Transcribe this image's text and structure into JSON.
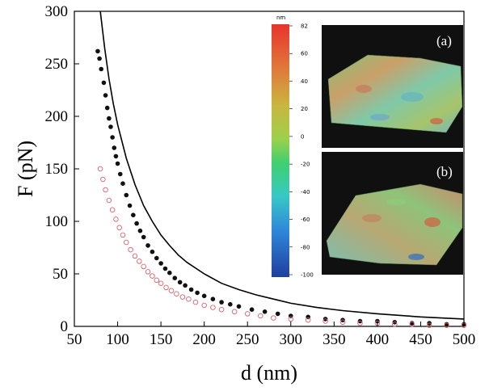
{
  "chart_data": {
    "type": "scatter",
    "xlabel": "d (nm)",
    "ylabel": "F (pN)",
    "xlim": [
      50,
      500
    ],
    "ylim": [
      0,
      300
    ],
    "xticks": [
      "50",
      "100",
      "150",
      "200",
      "250",
      "300",
      "350",
      "400",
      "450",
      "500"
    ],
    "yticks": [
      "0",
      "50",
      "100",
      "150",
      "200",
      "250",
      "300"
    ],
    "grid": false,
    "series": [
      {
        "marker": "filled-circle",
        "color": "#111111",
        "x": [
          77,
          79,
          81,
          84,
          86,
          88,
          90,
          92,
          94,
          96,
          98,
          100,
          103,
          106,
          110,
          114,
          118,
          122,
          126,
          130,
          135,
          140,
          145,
          150,
          155,
          160,
          166,
          172,
          178,
          185,
          192,
          200,
          210,
          220,
          230,
          240,
          255,
          270,
          285,
          300,
          320,
          340,
          360,
          380,
          400,
          420,
          440,
          460,
          480,
          500
        ],
        "y": [
          262,
          255,
          245,
          232,
          220,
          208,
          198,
          190,
          180,
          170,
          162,
          155,
          145,
          136,
          125,
          115,
          106,
          98,
          91,
          85,
          77,
          71,
          65,
          60,
          55,
          51,
          46,
          42,
          39,
          35,
          32,
          29,
          26,
          23,
          21,
          19,
          16,
          14,
          12,
          10,
          9,
          7,
          6,
          5,
          5,
          4,
          3,
          3,
          2,
          2
        ]
      },
      {
        "marker": "open-circle",
        "color": "#d9636b",
        "x": [
          80,
          83,
          86,
          90,
          94,
          98,
          102,
          106,
          110,
          115,
          120,
          125,
          130,
          135,
          140,
          145,
          150,
          156,
          162,
          168,
          175,
          182,
          190,
          200,
          210,
          220,
          235,
          250,
          265,
          280,
          300,
          320,
          340,
          360,
          380,
          400,
          420,
          440,
          460,
          480,
          500
        ],
        "y": [
          150,
          140,
          130,
          120,
          111,
          102,
          94,
          87,
          80,
          73,
          67,
          62,
          57,
          52,
          48,
          44,
          41,
          37,
          34,
          31,
          28,
          26,
          23,
          20,
          18,
          16,
          14,
          12,
          10,
          8,
          7,
          6,
          5,
          4,
          3,
          3,
          2,
          2,
          1,
          1,
          1
        ]
      },
      {
        "marker": "line",
        "color": "#000000",
        "x": [
          80,
          85,
          90,
          95,
          100,
          110,
          120,
          130,
          140,
          150,
          160,
          170,
          180,
          200,
          220,
          240,
          260,
          280,
          300,
          330,
          360,
          400,
          450,
          500
        ],
        "y": [
          300,
          265,
          236,
          212,
          192,
          160,
          135,
          115,
          100,
          87,
          77,
          68,
          61,
          50,
          41,
          35,
          30,
          26,
          22,
          18,
          15,
          12,
          9,
          7
        ]
      }
    ],
    "colorbar": {
      "unit": "nm",
      "ticks": [
        "82",
        "60",
        "40",
        "20",
        "0",
        "-20",
        "-40",
        "-60",
        "-80",
        "-100"
      ],
      "range": [
        -100,
        82
      ]
    },
    "insets": [
      {
        "label": "(a)"
      },
      {
        "label": "(b)"
      }
    ]
  }
}
